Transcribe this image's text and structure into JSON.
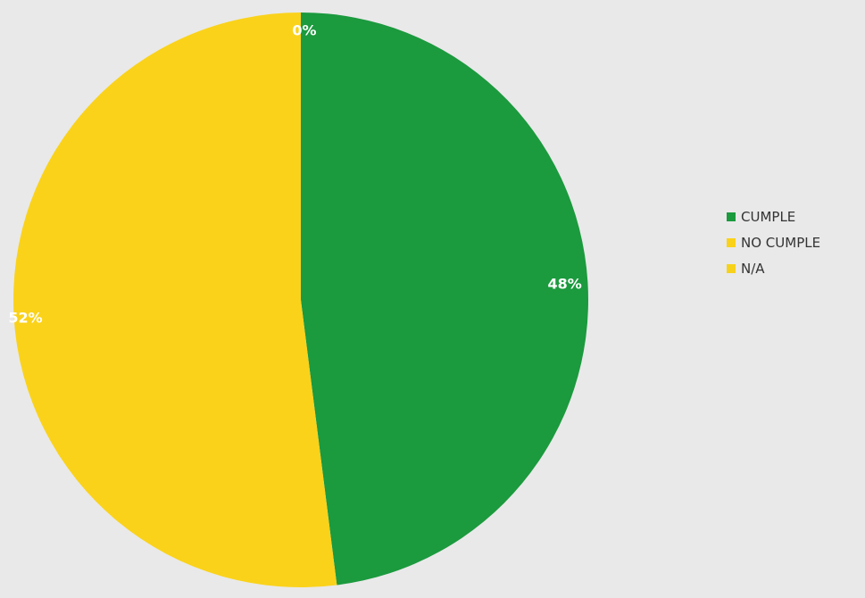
{
  "chart_data": {
    "type": "pie",
    "categories": [
      "CUMPLE",
      "NO CUMPLE",
      "N/A"
    ],
    "values": [
      48,
      52,
      0
    ],
    "labels": [
      "48%",
      "52%",
      "0%"
    ],
    "colors": [
      "#1b9a3e",
      "#fad21a",
      "#f6d21c"
    ],
    "legend_position": "right",
    "start_angle_deg": 0,
    "direction": "clockwise"
  }
}
